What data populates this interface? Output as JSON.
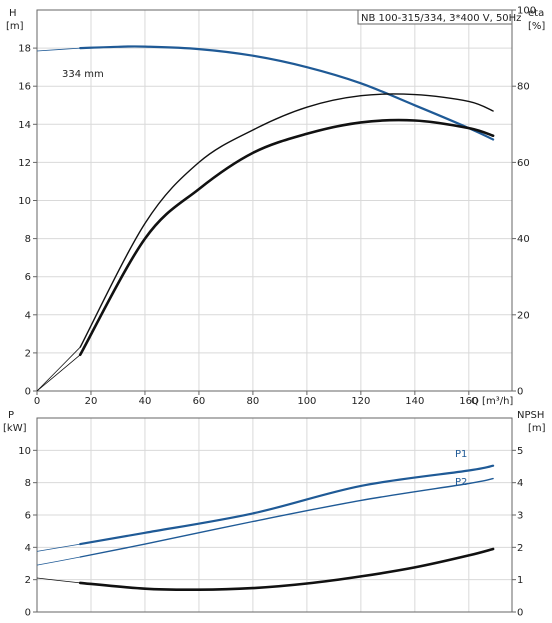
{
  "chart_data": [
    {
      "type": "line",
      "title": "NB 100-315/334, 3*400 V, 50Hz",
      "left_axis": {
        "label": "H",
        "unit": "[m]",
        "ylim": [
          0,
          20
        ],
        "ticks": [
          0,
          2,
          4,
          6,
          8,
          10,
          12,
          14,
          16,
          18
        ]
      },
      "right_axis": {
        "label": "eta",
        "unit": "[%]",
        "ylim": [
          0,
          100
        ],
        "ticks": [
          0,
          20,
          40,
          60,
          80,
          100
        ]
      },
      "x_axis": {
        "label": "Q [m³/h]",
        "xlim": [
          0,
          176
        ],
        "ticks": [
          0,
          20,
          40,
          60,
          80,
          100,
          120,
          140,
          160
        ]
      },
      "grid": true,
      "series": [
        {
          "name": "334 mm",
          "axis": "left",
          "color": "#1f5a96",
          "x": [
            0,
            16,
            30,
            40,
            60,
            80,
            100,
            120,
            140,
            160,
            169
          ],
          "values": [
            17.85,
            18.0,
            18.07,
            18.08,
            17.95,
            17.6,
            17.0,
            16.15,
            15.0,
            13.8,
            13.2
          ]
        },
        {
          "axis": "right",
          "color": "#111111",
          "x": [
            0,
            16,
            40,
            60,
            80,
            100,
            120,
            140,
            160,
            169
          ],
          "values": [
            0,
            11.5,
            44.0,
            60.0,
            68.5,
            74.5,
            77.5,
            77.8,
            76.0,
            73.5
          ]
        },
        {
          "axis": "right",
          "color": "#111111",
          "x": [
            0,
            16,
            40,
            60,
            80,
            100,
            120,
            140,
            160,
            169
          ],
          "values": [
            0,
            9.5,
            40.0,
            53.0,
            62.5,
            67.5,
            70.5,
            71.0,
            69.0,
            67.0
          ]
        }
      ]
    },
    {
      "type": "line",
      "left_axis": {
        "label": "P",
        "unit": "[kW]",
        "ylim": [
          0,
          12
        ],
        "ticks": [
          0,
          2,
          4,
          6,
          8,
          10
        ]
      },
      "right_axis": {
        "label": "NPSH",
        "unit": "[m]",
        "ylim": [
          0,
          6
        ],
        "ticks": [
          0,
          1,
          2,
          3,
          4,
          5
        ]
      },
      "x_axis": {
        "xlim": [
          0,
          176
        ],
        "ticks": [
          0,
          20,
          40,
          60,
          80,
          100,
          120,
          140,
          160
        ]
      },
      "grid": true,
      "series": [
        {
          "name": "P1",
          "axis": "left",
          "color": "#1f5a96",
          "x": [
            0,
            16,
            40,
            80,
            120,
            160,
            169
          ],
          "values": [
            3.75,
            4.2,
            4.9,
            6.1,
            7.8,
            8.75,
            9.05
          ]
        },
        {
          "name": "P2",
          "axis": "left",
          "color": "#1f5a96",
          "x": [
            0,
            16,
            40,
            80,
            120,
            160,
            169
          ],
          "values": [
            2.9,
            3.4,
            4.2,
            5.6,
            6.9,
            7.95,
            8.25
          ]
        },
        {
          "axis": "right",
          "color": "#111111",
          "x": [
            0,
            16,
            40,
            60,
            80,
            100,
            120,
            140,
            160,
            169
          ],
          "values": [
            1.05,
            0.9,
            0.72,
            0.69,
            0.74,
            0.88,
            1.1,
            1.38,
            1.75,
            1.95
          ]
        }
      ]
    }
  ]
}
